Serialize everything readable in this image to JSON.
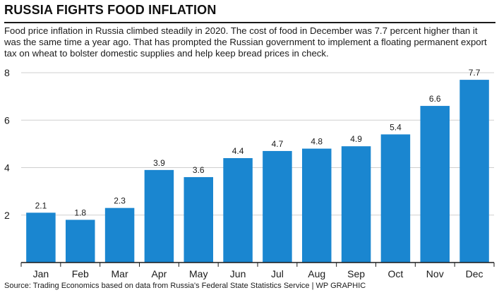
{
  "header": {
    "title": "RUSSIA FIGHTS FOOD INFLATION",
    "subtitle": "Food price inflation in Russia climbed steadily in 2020. The cost of food in December was 7.7 percent higher than it was the same time a year ago. That has prompted the Russian government to implement a floating permanent export tax on wheat to bolster domestic supplies and help keep bread prices in check."
  },
  "footer": {
    "source": "Source: Trading Economics based on data from Russia's Federal State Statistics Service | WP GRAPHIC"
  },
  "colors": {
    "bar": "#1a86d0",
    "grid": "#cfcfcf",
    "axis": "#1a1a1a",
    "text": "#1a1a1a"
  },
  "chart_data": {
    "type": "bar",
    "categories": [
      "Jan",
      "Feb",
      "Mar",
      "Apr",
      "May",
      "Jun",
      "Jul",
      "Aug",
      "Sep",
      "Oct",
      "Nov",
      "Dec"
    ],
    "values": [
      2.1,
      1.8,
      2.3,
      3.9,
      3.6,
      4.4,
      4.7,
      4.8,
      4.9,
      5.4,
      6.6,
      7.7
    ],
    "data_labels": [
      "2.1",
      "1.8",
      "2.3",
      "3.9",
      "3.6",
      "4.4",
      "4.7",
      "4.8",
      "4.9",
      "5.4",
      "6.6",
      "7.7"
    ],
    "y_ticks": [
      2,
      4,
      6,
      8
    ],
    "ylim": [
      0,
      8
    ],
    "title": "",
    "xlabel": "",
    "ylabel": "",
    "grid": true
  }
}
